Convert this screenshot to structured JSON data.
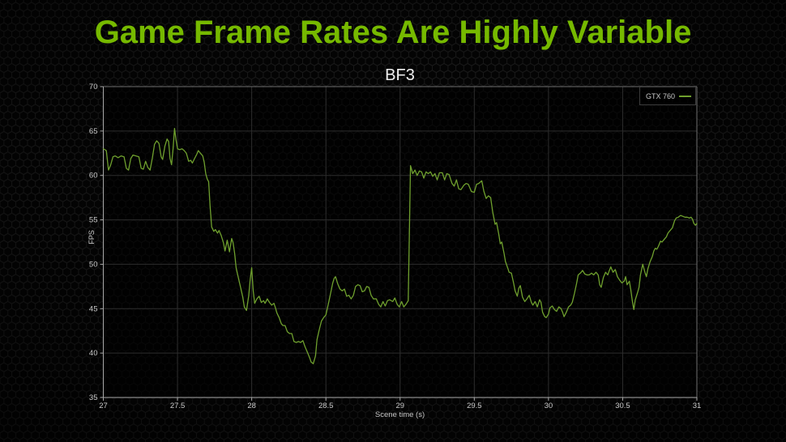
{
  "slide": {
    "title": "Game Frame Rates Are Highly Variable"
  },
  "colors": {
    "accent_green": "#76b900",
    "series_green": "#6fa02e",
    "background": "#030303",
    "axis_line": "#a8a8a8",
    "plot_border": "#6e6e6e",
    "gridline": "#2d2d2d",
    "tick_text": "#c9c9c9",
    "chart_title_text": "#efefef"
  },
  "chart_data": {
    "type": "line",
    "title": "BF3",
    "xlabel": "Scene time (s)",
    "ylabel": "FPS",
    "xlim": [
      27,
      31
    ],
    "ylim": [
      35,
      70
    ],
    "x_ticks": [
      27,
      27.5,
      28,
      28.5,
      29,
      29.5,
      30,
      30.5,
      31
    ],
    "x_tick_labels": [
      "27",
      "27.5",
      "28",
      "28.5",
      "29",
      "29.5",
      "30",
      "30.5",
      "31"
    ],
    "y_ticks": [
      35,
      40,
      45,
      50,
      55,
      60,
      65,
      70
    ],
    "y_tick_labels": [
      "35",
      "40",
      "45",
      "50",
      "55",
      "60",
      "65",
      "70"
    ],
    "grid": true,
    "legend_position": "top-right",
    "series": [
      {
        "name": "GTX 760",
        "color": "#6fa02e",
        "points": [
          [
            27.0,
            63.0
          ],
          [
            27.02,
            62.8
          ],
          [
            27.035,
            60.6
          ],
          [
            27.05,
            61.2
          ],
          [
            27.065,
            62.1
          ],
          [
            27.08,
            62.2
          ],
          [
            27.1,
            62.0
          ],
          [
            27.12,
            62.2
          ],
          [
            27.14,
            62.1
          ],
          [
            27.155,
            60.8
          ],
          [
            27.17,
            60.6
          ],
          [
            27.185,
            61.9
          ],
          [
            27.2,
            62.3
          ],
          [
            27.22,
            62.2
          ],
          [
            27.24,
            62.1
          ],
          [
            27.255,
            60.8
          ],
          [
            27.27,
            60.7
          ],
          [
            27.285,
            61.6
          ],
          [
            27.3,
            60.9
          ],
          [
            27.315,
            60.6
          ],
          [
            27.33,
            61.9
          ],
          [
            27.345,
            63.5
          ],
          [
            27.36,
            63.9
          ],
          [
            27.375,
            63.6
          ],
          [
            27.39,
            62.1
          ],
          [
            27.4,
            61.8
          ],
          [
            27.415,
            63.3
          ],
          [
            27.43,
            64.1
          ],
          [
            27.44,
            63.8
          ],
          [
            27.45,
            61.9
          ],
          [
            27.46,
            61.2
          ],
          [
            27.47,
            63.0
          ],
          [
            27.48,
            65.3
          ],
          [
            27.49,
            64.0
          ],
          [
            27.5,
            63.0
          ],
          [
            27.515,
            62.9
          ],
          [
            27.53,
            63.0
          ],
          [
            27.545,
            62.8
          ],
          [
            27.56,
            62.5
          ],
          [
            27.575,
            61.6
          ],
          [
            27.59,
            61.7
          ],
          [
            27.6,
            61.4
          ],
          [
            27.615,
            61.9
          ],
          [
            27.63,
            62.4
          ],
          [
            27.64,
            62.8
          ],
          [
            27.655,
            62.5
          ],
          [
            27.67,
            62.2
          ],
          [
            27.68,
            61.5
          ],
          [
            27.69,
            60.2
          ],
          [
            27.7,
            59.6
          ],
          [
            27.71,
            59.3
          ],
          [
            27.72,
            56.5
          ],
          [
            27.73,
            54.2
          ],
          [
            27.745,
            53.7
          ],
          [
            27.755,
            53.9
          ],
          [
            27.77,
            53.5
          ],
          [
            27.78,
            53.8
          ],
          [
            27.795,
            53.2
          ],
          [
            27.81,
            52.4
          ],
          [
            27.82,
            51.5
          ],
          [
            27.835,
            52.7
          ],
          [
            27.85,
            51.4
          ],
          [
            27.865,
            52.9
          ],
          [
            27.875,
            52.4
          ],
          [
            27.885,
            51.2
          ],
          [
            27.895,
            49.6
          ],
          [
            27.91,
            48.5
          ],
          [
            27.925,
            47.4
          ],
          [
            27.94,
            46.3
          ],
          [
            27.95,
            45.2
          ],
          [
            27.965,
            44.8
          ],
          [
            27.98,
            46.5
          ],
          [
            27.99,
            48.3
          ],
          [
            28.0,
            49.6
          ],
          [
            28.01,
            47.0
          ],
          [
            28.02,
            45.6
          ],
          [
            28.035,
            46.1
          ],
          [
            28.05,
            46.4
          ],
          [
            28.065,
            45.7
          ],
          [
            28.08,
            45.9
          ],
          [
            28.09,
            45.6
          ],
          [
            28.105,
            46.1
          ],
          [
            28.12,
            45.7
          ],
          [
            28.135,
            45.4
          ],
          [
            28.15,
            45.6
          ],
          [
            28.16,
            45.1
          ],
          [
            28.17,
            44.5
          ],
          [
            28.185,
            44.0
          ],
          [
            28.2,
            43.3
          ],
          [
            28.21,
            43.1
          ],
          [
            28.225,
            43.1
          ],
          [
            28.24,
            42.4
          ],
          [
            28.255,
            42.2
          ],
          [
            28.27,
            42.2
          ],
          [
            28.285,
            41.3
          ],
          [
            28.3,
            41.2
          ],
          [
            28.315,
            41.3
          ],
          [
            28.33,
            41.2
          ],
          [
            28.345,
            41.4
          ],
          [
            28.36,
            40.7
          ],
          [
            28.375,
            40.1
          ],
          [
            28.39,
            39.5
          ],
          [
            28.4,
            39.0
          ],
          [
            28.415,
            38.8
          ],
          [
            28.43,
            39.7
          ],
          [
            28.44,
            41.5
          ],
          [
            28.455,
            42.6
          ],
          [
            28.47,
            43.6
          ],
          [
            28.485,
            44.0
          ],
          [
            28.5,
            44.3
          ],
          [
            28.515,
            45.4
          ],
          [
            28.53,
            46.6
          ],
          [
            28.545,
            47.8
          ],
          [
            28.555,
            48.4
          ],
          [
            28.565,
            48.6
          ],
          [
            28.58,
            47.8
          ],
          [
            28.595,
            47.2
          ],
          [
            28.61,
            47.0
          ],
          [
            28.625,
            47.2
          ],
          [
            28.64,
            46.4
          ],
          [
            28.655,
            46.5
          ],
          [
            28.67,
            46.1
          ],
          [
            28.685,
            46.5
          ],
          [
            28.7,
            47.5
          ],
          [
            28.715,
            47.7
          ],
          [
            28.73,
            47.6
          ],
          [
            28.745,
            46.9
          ],
          [
            28.76,
            47.0
          ],
          [
            28.775,
            47.5
          ],
          [
            28.79,
            47.4
          ],
          [
            28.805,
            46.5
          ],
          [
            28.82,
            46.1
          ],
          [
            28.84,
            46.1
          ],
          [
            28.855,
            45.5
          ],
          [
            28.87,
            45.2
          ],
          [
            28.885,
            45.8
          ],
          [
            28.9,
            45.3
          ],
          [
            28.915,
            45.9
          ],
          [
            28.93,
            46.0
          ],
          [
            28.95,
            45.8
          ],
          [
            28.965,
            46.2
          ],
          [
            28.98,
            45.5
          ],
          [
            28.995,
            45.2
          ],
          [
            29.01,
            45.8
          ],
          [
            29.025,
            45.2
          ],
          [
            29.04,
            45.5
          ],
          [
            29.055,
            45.9
          ],
          [
            29.07,
            61.1
          ],
          [
            29.085,
            60.2
          ],
          [
            29.1,
            60.6
          ],
          [
            29.115,
            60.0
          ],
          [
            29.13,
            60.5
          ],
          [
            29.145,
            60.4
          ],
          [
            29.16,
            59.7
          ],
          [
            29.175,
            60.4
          ],
          [
            29.19,
            60.2
          ],
          [
            29.205,
            60.4
          ],
          [
            29.22,
            59.9
          ],
          [
            29.235,
            60.2
          ],
          [
            29.25,
            59.5
          ],
          [
            29.265,
            60.3
          ],
          [
            29.285,
            60.3
          ],
          [
            29.3,
            59.5
          ],
          [
            29.315,
            60.2
          ],
          [
            29.33,
            60.1
          ],
          [
            29.35,
            59.1
          ],
          [
            29.365,
            58.8
          ],
          [
            29.38,
            59.5
          ],
          [
            29.395,
            58.5
          ],
          [
            29.41,
            58.4
          ],
          [
            29.43,
            58.9
          ],
          [
            29.445,
            59.1
          ],
          [
            29.46,
            59.0
          ],
          [
            29.48,
            58.2
          ],
          [
            29.5,
            58.1
          ],
          [
            29.515,
            59.0
          ],
          [
            29.53,
            59.1
          ],
          [
            29.55,
            59.4
          ],
          [
            29.565,
            58.2
          ],
          [
            29.58,
            57.4
          ],
          [
            29.595,
            57.7
          ],
          [
            29.61,
            57.5
          ],
          [
            29.625,
            55.8
          ],
          [
            29.64,
            54.5
          ],
          [
            29.65,
            54.7
          ],
          [
            29.665,
            53.4
          ],
          [
            29.675,
            52.3
          ],
          [
            29.685,
            52.5
          ],
          [
            29.7,
            51.3
          ],
          [
            29.71,
            50.3
          ],
          [
            29.725,
            49.6
          ],
          [
            29.735,
            49.1
          ],
          [
            29.75,
            49.0
          ],
          [
            29.765,
            47.9
          ],
          [
            29.775,
            47.0
          ],
          [
            29.79,
            46.4
          ],
          [
            29.8,
            47.3
          ],
          [
            29.81,
            47.6
          ],
          [
            29.825,
            46.3
          ],
          [
            29.84,
            45.8
          ],
          [
            29.855,
            46.1
          ],
          [
            29.87,
            46.5
          ],
          [
            29.885,
            45.7
          ],
          [
            29.895,
            45.4
          ],
          [
            29.91,
            45.8
          ],
          [
            29.925,
            45.2
          ],
          [
            29.94,
            46.0
          ],
          [
            29.95,
            45.7
          ],
          [
            29.96,
            44.6
          ],
          [
            29.975,
            44.1
          ],
          [
            29.985,
            44.0
          ],
          [
            30.0,
            44.4
          ],
          [
            30.01,
            45.1
          ],
          [
            30.025,
            45.3
          ],
          [
            30.04,
            44.9
          ],
          [
            30.055,
            44.7
          ],
          [
            30.07,
            45.2
          ],
          [
            30.085,
            45.0
          ],
          [
            30.095,
            44.6
          ],
          [
            30.105,
            44.1
          ],
          [
            30.12,
            44.6
          ],
          [
            30.135,
            45.2
          ],
          [
            30.15,
            45.4
          ],
          [
            30.16,
            45.7
          ],
          [
            30.175,
            46.7
          ],
          [
            30.19,
            47.9
          ],
          [
            30.2,
            48.8
          ],
          [
            30.215,
            49.0
          ],
          [
            30.23,
            49.3
          ],
          [
            30.245,
            48.9
          ],
          [
            30.26,
            48.8
          ],
          [
            30.275,
            48.8
          ],
          [
            30.29,
            49.0
          ],
          [
            30.305,
            48.8
          ],
          [
            30.32,
            49.1
          ],
          [
            30.335,
            48.8
          ],
          [
            30.345,
            47.7
          ],
          [
            30.355,
            47.4
          ],
          [
            30.37,
            48.5
          ],
          [
            30.385,
            49.1
          ],
          [
            30.4,
            48.8
          ],
          [
            30.41,
            49.3
          ],
          [
            30.42,
            49.7
          ],
          [
            30.435,
            49.1
          ],
          [
            30.45,
            49.4
          ],
          [
            30.465,
            48.6
          ],
          [
            30.48,
            48.2
          ],
          [
            30.495,
            47.9
          ],
          [
            30.51,
            48.1
          ],
          [
            30.52,
            48.6
          ],
          [
            30.53,
            47.7
          ],
          [
            30.545,
            48.1
          ],
          [
            30.555,
            47.1
          ],
          [
            30.565,
            45.9
          ],
          [
            30.575,
            44.9
          ],
          [
            30.585,
            46.0
          ],
          [
            30.6,
            46.8
          ],
          [
            30.61,
            47.4
          ],
          [
            30.62,
            48.8
          ],
          [
            30.635,
            50.0
          ],
          [
            30.65,
            49.1
          ],
          [
            30.66,
            48.6
          ],
          [
            30.67,
            49.5
          ],
          [
            30.685,
            50.3
          ],
          [
            30.7,
            50.9
          ],
          [
            30.71,
            51.5
          ],
          [
            30.72,
            51.8
          ],
          [
            30.73,
            51.7
          ],
          [
            30.74,
            52.0
          ],
          [
            30.755,
            52.6
          ],
          [
            30.765,
            52.5
          ],
          [
            30.78,
            52.8
          ],
          [
            30.795,
            53.1
          ],
          [
            30.805,
            53.5
          ],
          [
            30.82,
            53.8
          ],
          [
            30.835,
            54.1
          ],
          [
            30.85,
            54.9
          ],
          [
            30.86,
            55.2
          ],
          [
            30.875,
            55.3
          ],
          [
            30.89,
            55.5
          ],
          [
            30.905,
            55.4
          ],
          [
            30.92,
            55.3
          ],
          [
            30.935,
            55.3
          ],
          [
            30.95,
            55.2
          ],
          [
            30.96,
            55.3
          ],
          [
            30.97,
            55.1
          ],
          [
            30.98,
            54.6
          ],
          [
            30.99,
            54.4
          ],
          [
            31.0,
            54.6
          ]
        ]
      }
    ]
  }
}
